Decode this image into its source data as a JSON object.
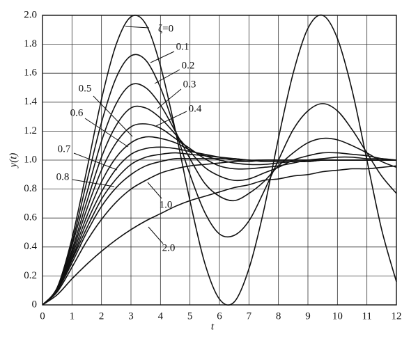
{
  "chart_data": {
    "type": "line",
    "x_label": "t",
    "y_label": "y(t)",
    "xlim": [
      0,
      12
    ],
    "ylim": [
      0,
      2
    ],
    "xticks": [
      0,
      1,
      2,
      3,
      4,
      5,
      6,
      7,
      8,
      9,
      10,
      11,
      12
    ],
    "yticks": [
      0,
      0.2,
      0.4,
      0.6,
      0.8,
      {
        "value": 1,
        "label": "1.0"
      },
      1.2,
      1.4,
      1.6,
      1.8,
      {
        "value": 2,
        "label": "2.0"
      }
    ],
    "grid": true,
    "x": [
      0,
      0.5,
      1,
      1.5,
      2,
      2.5,
      3,
      3.5,
      4,
      4.5,
      5,
      5.5,
      6,
      6.5,
      7,
      7.5,
      8,
      8.5,
      9,
      9.5,
      10,
      10.5,
      11,
      11.5,
      12
    ],
    "series": [
      {
        "name": "ζ=0",
        "color": "#111111",
        "values": [
          0,
          0.12,
          0.46,
          0.93,
          1.42,
          1.8,
          1.99,
          1.94,
          1.65,
          1.21,
          0.72,
          0.29,
          0.04,
          0.02,
          0.25,
          0.65,
          1.15,
          1.6,
          1.91,
          2.0,
          1.84,
          1.48,
          1.0,
          0.52,
          0.16
        ]
      },
      {
        "name": "0.1",
        "color": "#111111",
        "values": [
          0,
          0.12,
          0.43,
          0.85,
          1.26,
          1.57,
          1.72,
          1.69,
          1.5,
          1.21,
          0.9,
          0.64,
          0.49,
          0.48,
          0.58,
          0.78,
          1.0,
          1.21,
          1.34,
          1.39,
          1.34,
          1.21,
          1.05,
          0.89,
          0.77
        ]
      },
      {
        "name": "0.2",
        "color": "#111111",
        "values": [
          0,
          0.11,
          0.41,
          0.77,
          1.13,
          1.39,
          1.52,
          1.5,
          1.38,
          1.2,
          1.01,
          0.84,
          0.75,
          0.72,
          0.77,
          0.85,
          0.96,
          1.05,
          1.12,
          1.15,
          1.14,
          1.1,
          1.05,
          0.99,
          0.95
        ]
      },
      {
        "name": "0.3",
        "color": "#111111",
        "values": [
          0,
          0.11,
          0.38,
          0.71,
          1.02,
          1.24,
          1.36,
          1.36,
          1.29,
          1.18,
          1.06,
          0.95,
          0.89,
          0.86,
          0.87,
          0.91,
          0.95,
          1.0,
          1.03,
          1.05,
          1.05,
          1.04,
          1.03,
          1.01,
          1.0
        ]
      },
      {
        "name": "0.4",
        "color": "#111111",
        "values": [
          0,
          0.11,
          0.36,
          0.66,
          0.93,
          1.12,
          1.23,
          1.25,
          1.22,
          1.15,
          1.08,
          1.01,
          0.96,
          0.94,
          0.94,
          0.95,
          0.96,
          0.98,
          1.0,
          1.01,
          1.02,
          1.02,
          1.01,
          1.01,
          1.0
        ]
      },
      {
        "name": "0.5",
        "color": "#111111",
        "values": [
          0,
          0.1,
          0.34,
          0.61,
          0.85,
          1.02,
          1.12,
          1.16,
          1.15,
          1.12,
          1.07,
          1.03,
          1.0,
          0.98,
          0.97,
          0.97,
          0.98,
          0.99,
          0.99,
          1.0,
          1.0,
          1.0,
          1.0,
          1.0,
          1.0
        ]
      },
      {
        "name": "0.6",
        "color": "#111111",
        "values": [
          0,
          0.1,
          0.32,
          0.57,
          0.78,
          0.94,
          1.04,
          1.08,
          1.09,
          1.08,
          1.06,
          1.04,
          1.02,
          1.0,
          1.0,
          0.99,
          0.99,
          0.99,
          0.99,
          1.0,
          1.0,
          1.0,
          1.0,
          1.0,
          1.0
        ]
      },
      {
        "name": "0.7",
        "color": "#111111",
        "values": [
          0,
          0.1,
          0.31,
          0.53,
          0.73,
          0.87,
          0.97,
          1.02,
          1.04,
          1.05,
          1.04,
          1.03,
          1.02,
          1.01,
          1.0,
          1.0,
          1.0,
          1.0,
          1.0,
          1.0,
          1.0,
          1.0,
          1.0,
          1.0,
          1.0
        ]
      },
      {
        "name": "0.8",
        "color": "#111111",
        "values": [
          0,
          0.1,
          0.29,
          0.5,
          0.68,
          0.81,
          0.9,
          0.96,
          0.99,
          1.01,
          1.01,
          1.01,
          1.01,
          1.01,
          1.0,
          1.0,
          1.0,
          1.0,
          1.0,
          1.0,
          1.0,
          1.0,
          1.0,
          1.0,
          1.0
        ]
      },
      {
        "name": "1.0",
        "color": "#111111",
        "values": [
          0,
          0.09,
          0.26,
          0.44,
          0.59,
          0.71,
          0.8,
          0.86,
          0.91,
          0.94,
          0.96,
          0.97,
          0.98,
          0.99,
          0.99,
          1.0,
          1.0,
          1.0,
          1.0,
          1.0,
          1.0,
          1.0,
          1.0,
          1.0,
          1.0
        ]
      },
      {
        "name": "2.0",
        "color": "#111111",
        "values": [
          0,
          0.07,
          0.18,
          0.28,
          0.37,
          0.45,
          0.52,
          0.58,
          0.63,
          0.68,
          0.72,
          0.75,
          0.78,
          0.81,
          0.83,
          0.86,
          0.87,
          0.89,
          0.9,
          0.92,
          0.93,
          0.94,
          0.94,
          0.95,
          0.96
        ]
      }
    ]
  }
}
